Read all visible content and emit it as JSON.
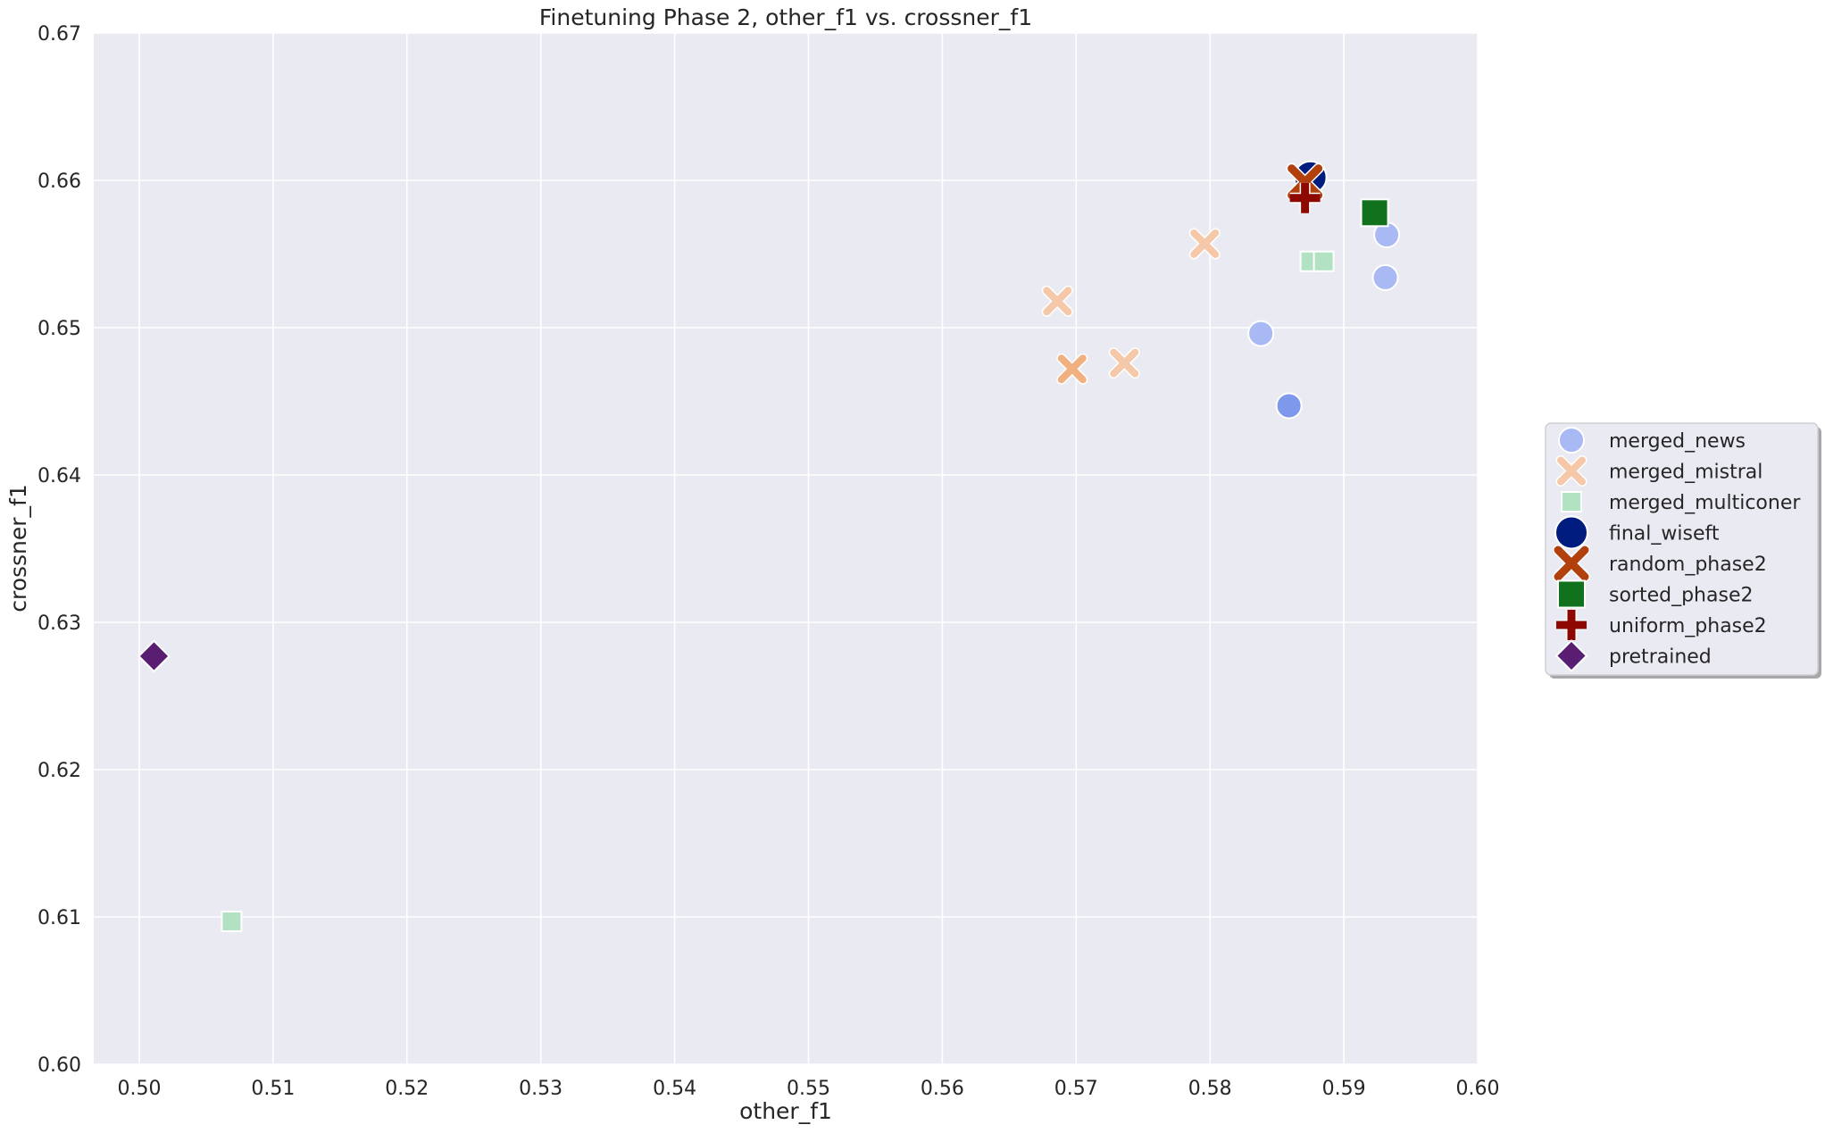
{
  "chart_data": {
    "type": "scatter",
    "title": "Finetuning Phase 2, other_f1 vs. crossner_f1",
    "xlabel": "other_f1",
    "ylabel": "crossner_f1",
    "xlim": [
      0.4966,
      0.6
    ],
    "ylim": [
      0.6,
      0.67
    ],
    "xticks": [
      "0.50",
      "0.51",
      "0.52",
      "0.53",
      "0.54",
      "0.55",
      "0.56",
      "0.57",
      "0.58",
      "0.59",
      "0.60"
    ],
    "yticks": [
      "0.60",
      "0.61",
      "0.62",
      "0.63",
      "0.64",
      "0.65",
      "0.66",
      "0.67"
    ],
    "grid": true,
    "legend_position": "right-outside",
    "series": [
      {
        "name": "merged_news",
        "marker": "circle",
        "color": "#a9b9f3",
        "points": [
          {
            "x": 0.5838,
            "y": 0.6496,
            "color": "#a9b9f3"
          },
          {
            "x": 0.5859,
            "y": 0.6447,
            "color": "#7e98ec"
          },
          {
            "x": 0.5932,
            "y": 0.6563,
            "color": "#a9b9f3"
          },
          {
            "x": 0.5931,
            "y": 0.6534,
            "color": "#a9b9f3"
          }
        ]
      },
      {
        "name": "merged_mistral",
        "marker": "x",
        "color": "#f4c8a8",
        "points": [
          {
            "x": 0.5686,
            "y": 0.6518,
            "color": "#f4c8a8"
          },
          {
            "x": 0.5697,
            "y": 0.6472,
            "color": "#f0b07f"
          },
          {
            "x": 0.5736,
            "y": 0.6476,
            "color": "#f4c8a8"
          },
          {
            "x": 0.5796,
            "y": 0.6557,
            "color": "#f4c8a8"
          }
        ]
      },
      {
        "name": "merged_multiconer",
        "marker": "square",
        "color": "#b3e2c2",
        "points": [
          {
            "x": 0.5069,
            "y": 0.6097,
            "color": "#b3e2c2"
          },
          {
            "x": 0.5875,
            "y": 0.6545,
            "color": "#b3e2c2"
          },
          {
            "x": 0.5885,
            "y": 0.6545,
            "color": "#b3e2c2"
          }
        ]
      },
      {
        "name": "final_wiseft",
        "marker": "circle-large",
        "color": "#001c7f",
        "points": [
          {
            "x": 0.5875,
            "y": 0.6602,
            "color": "#001c7f"
          }
        ]
      },
      {
        "name": "random_phase2",
        "marker": "x-large",
        "color": "#b1400d",
        "points": [
          {
            "x": 0.5871,
            "y": 0.6599,
            "color": "#b1400d"
          }
        ]
      },
      {
        "name": "sorted_phase2",
        "marker": "square-large",
        "color": "#12711c",
        "points": [
          {
            "x": 0.5923,
            "y": 0.6578,
            "color": "#12711c"
          }
        ]
      },
      {
        "name": "uniform_phase2",
        "marker": "plus",
        "color": "#8c0800",
        "points": [
          {
            "x": 0.5871,
            "y": 0.6588,
            "color": "#8c0800"
          }
        ]
      },
      {
        "name": "pretrained",
        "marker": "diamond",
        "color": "#591e71",
        "points": [
          {
            "x": 0.5011,
            "y": 0.6277,
            "color": "#591e71"
          }
        ]
      }
    ]
  }
}
